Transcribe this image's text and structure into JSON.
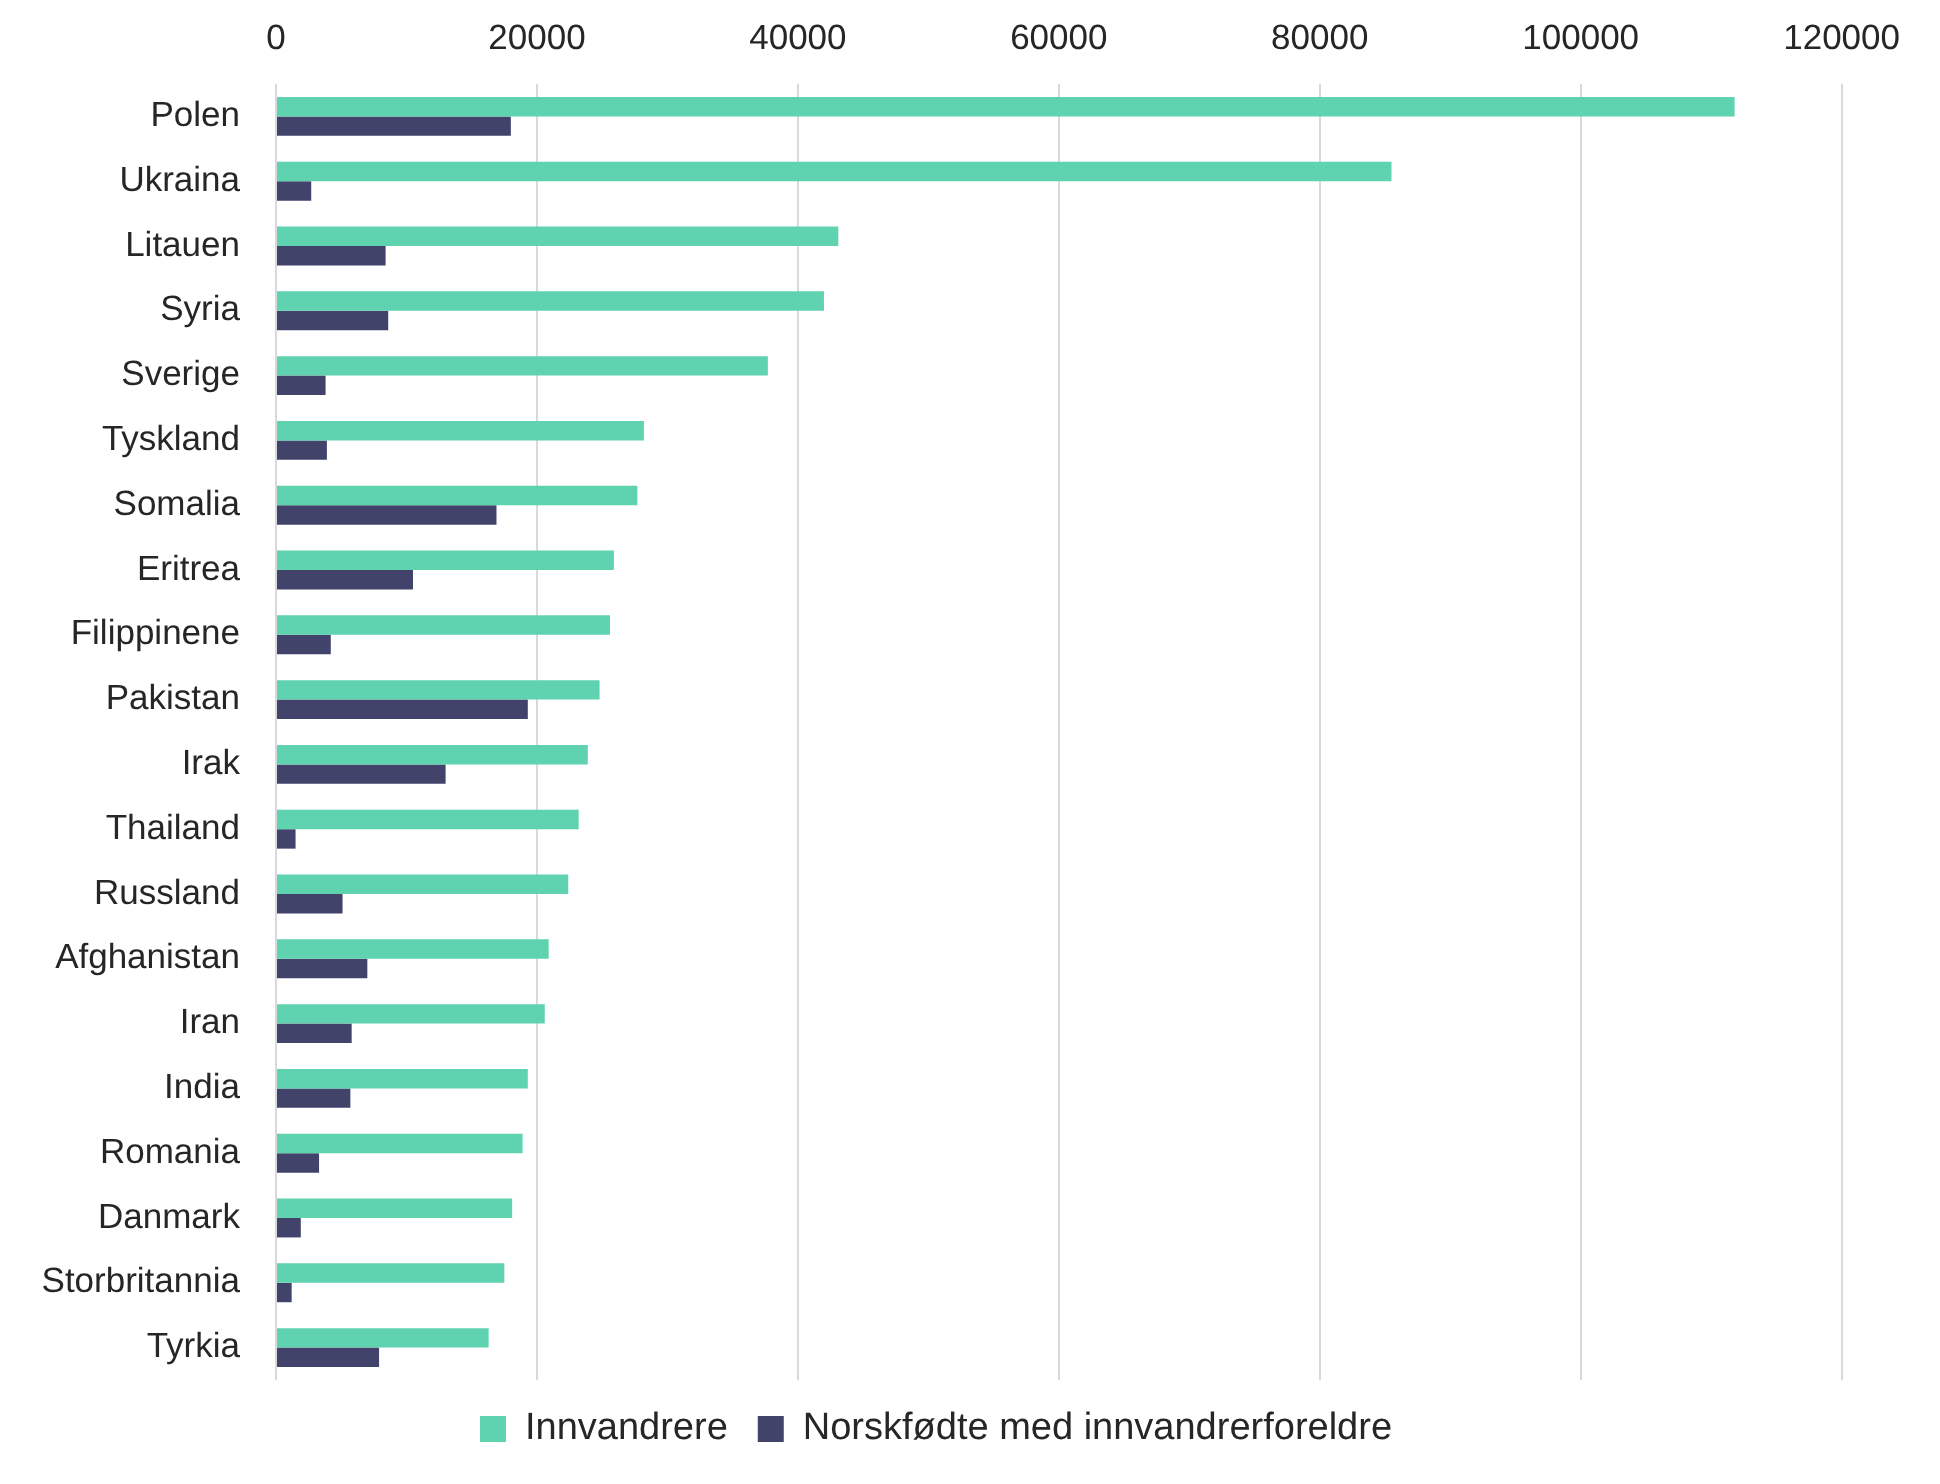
{
  "chart_data": {
    "type": "bar",
    "orientation": "horizontal",
    "categories": [
      "Polen",
      "Ukraina",
      "Litauen",
      "Syria",
      "Sverige",
      "Tyskland",
      "Somalia",
      "Eritrea",
      "Filippinene",
      "Pakistan",
      "Irak",
      "Thailand",
      "Russland",
      "Afghanistan",
      "Iran",
      "India",
      "Romania",
      "Danmark",
      "Storbritannia",
      "Tyrkia"
    ],
    "series": [
      {
        "name": "Innvandrere",
        "color": "#5fd3b0",
        "values": [
          111800,
          85500,
          43100,
          42000,
          37700,
          28200,
          27700,
          25900,
          25600,
          24800,
          23900,
          23200,
          22400,
          20900,
          20600,
          19300,
          18900,
          18100,
          17500,
          16300
        ]
      },
      {
        "name": "Norskfødte med innvandrerforeldre",
        "color": "#41436a",
        "values": [
          18000,
          2700,
          8400,
          8600,
          3800,
          3900,
          16900,
          10500,
          4200,
          19300,
          13000,
          1500,
          5100,
          7000,
          5800,
          5700,
          3300,
          1900,
          1200,
          7900
        ]
      }
    ],
    "xlim": [
      0,
      120000
    ],
    "xticks": [
      0,
      20000,
      40000,
      60000,
      80000,
      100000,
      120000
    ],
    "grid": "x",
    "legend": "bottom"
  }
}
